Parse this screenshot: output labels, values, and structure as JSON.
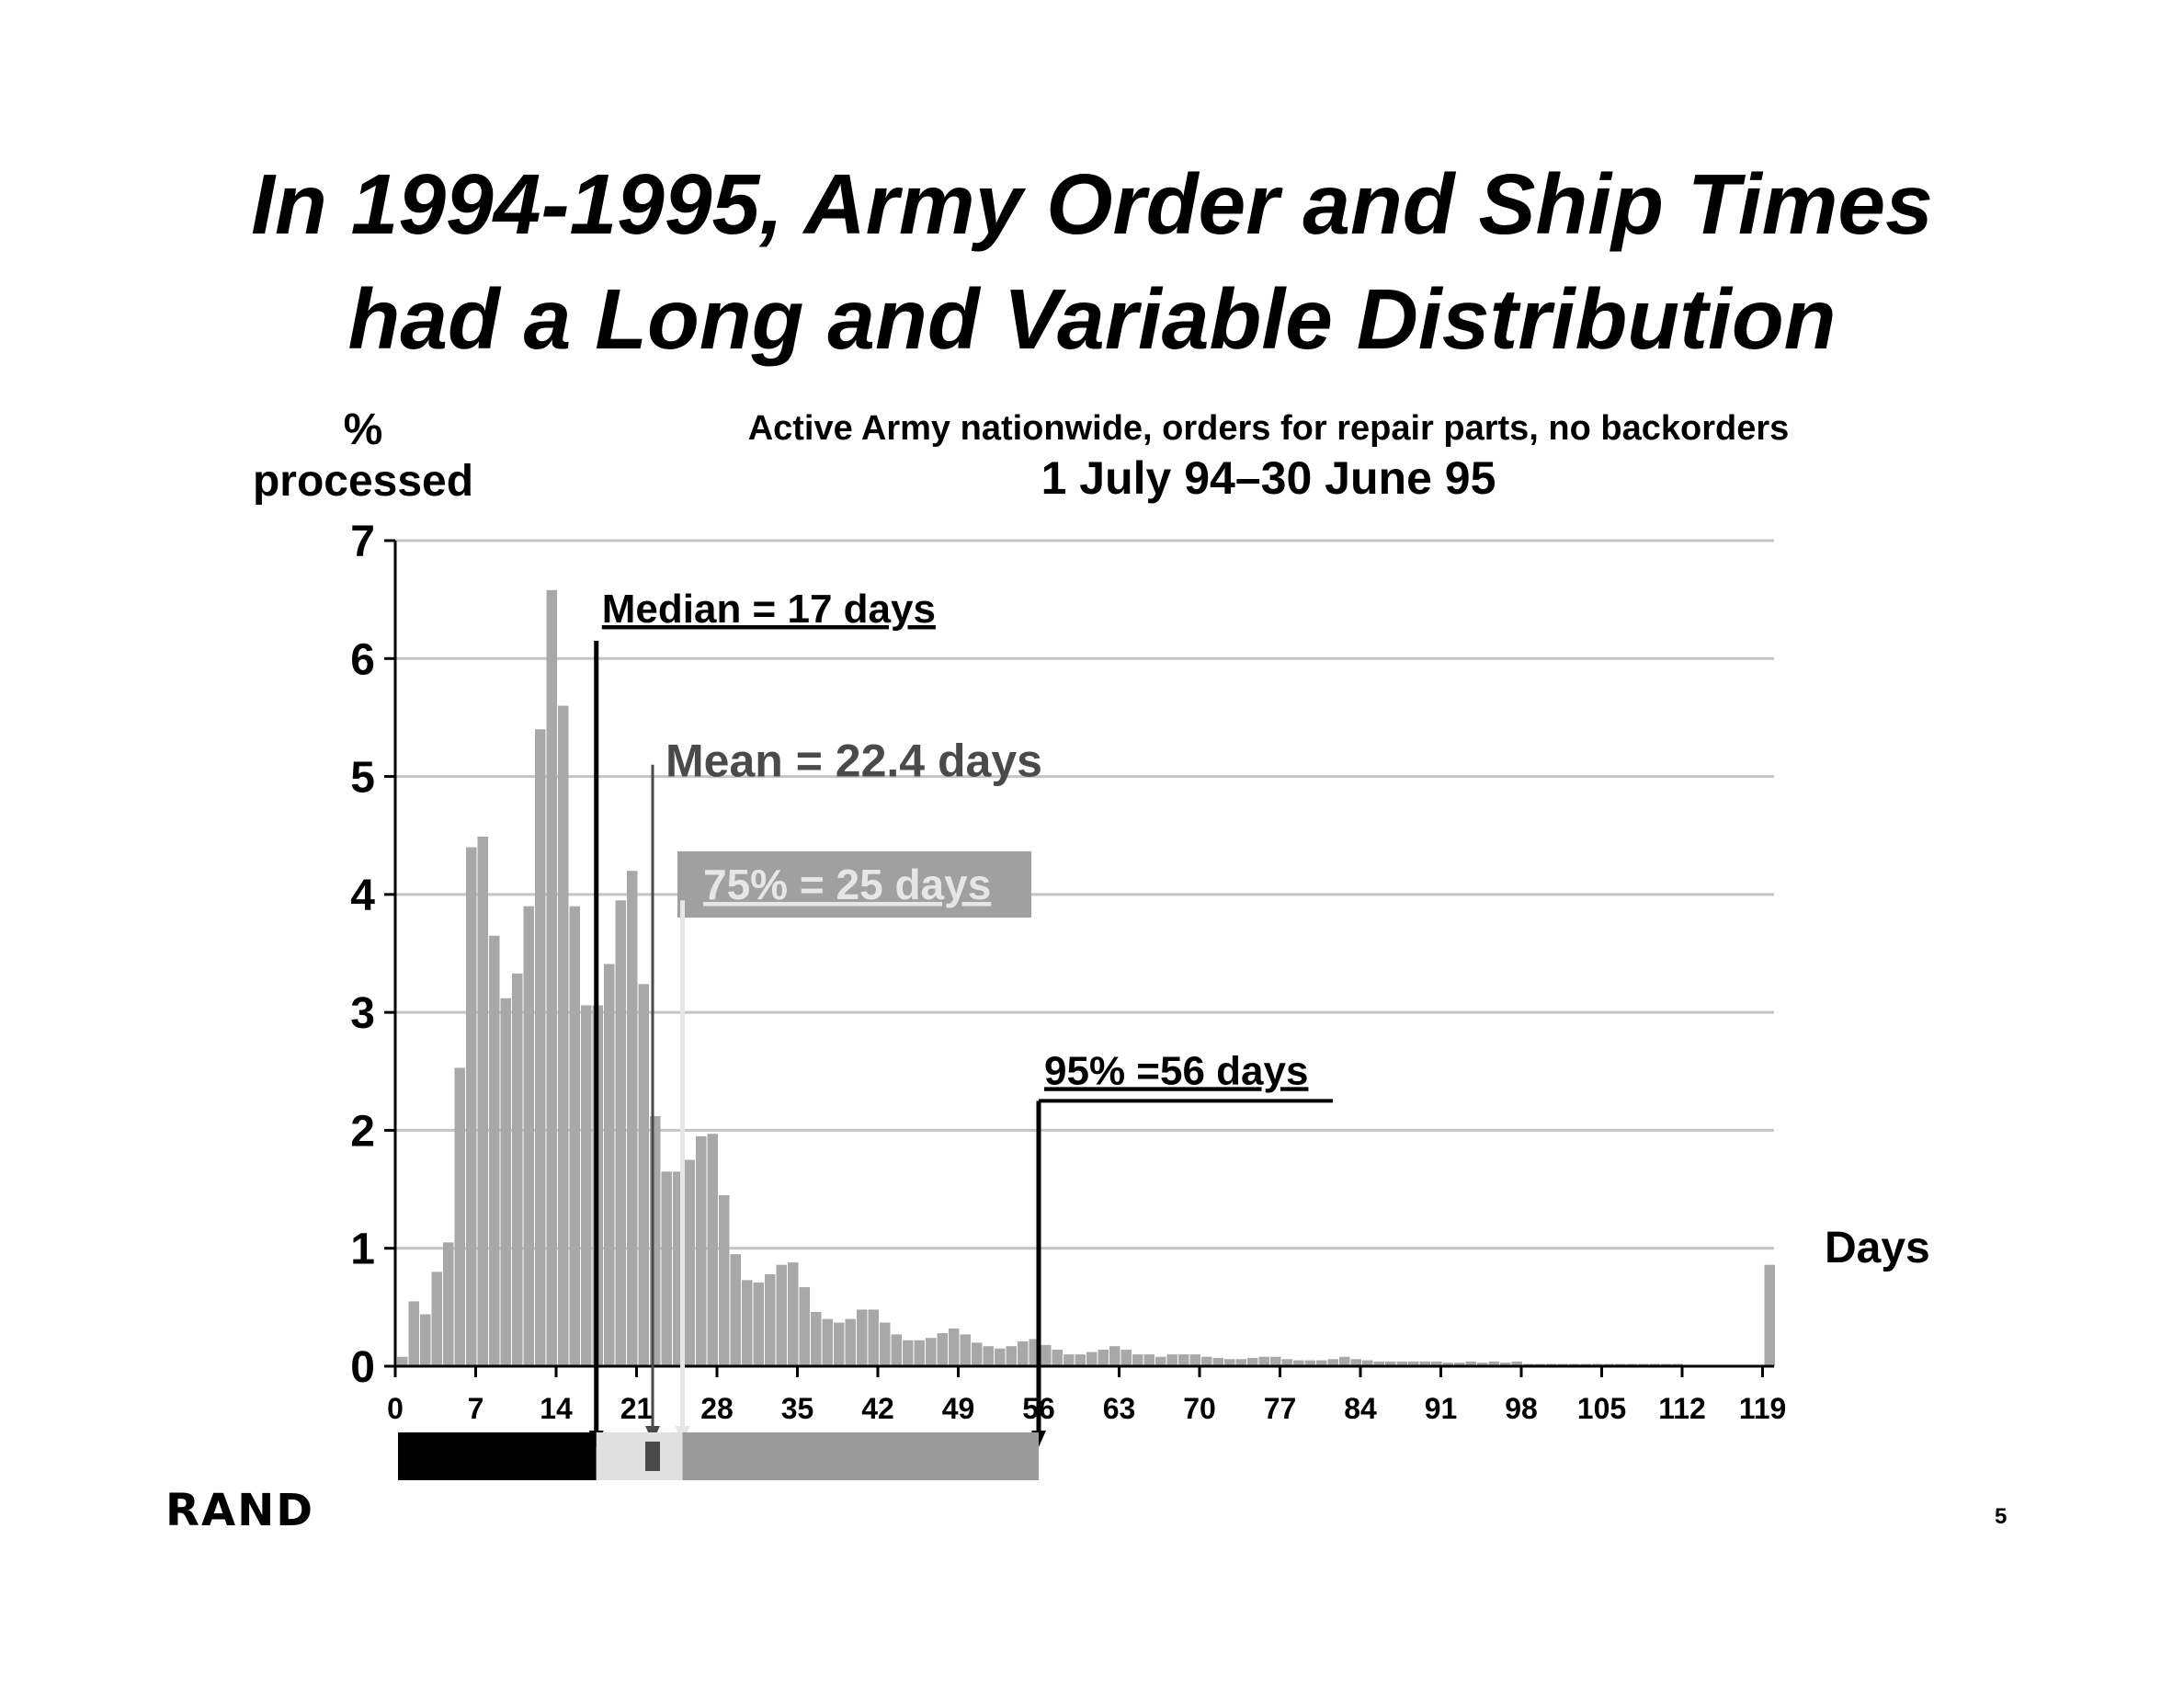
{
  "title": {
    "line1": "In 1994-1995, Army Order and Ship Times",
    "line2": "had a Long and Variable Distribution"
  },
  "footer": {
    "logo": "RAND",
    "page_number": "5"
  },
  "colors": {
    "bar": "#a8a8a8",
    "grid": "#c4c4c4",
    "median": "#000000",
    "mean": "#4a4a4a",
    "p75_box": "#a0a0a0",
    "p75_text": "#e6e6e6",
    "p95": "#000000",
    "strip_black": "#000000",
    "strip_light": "#e0e0e0",
    "strip_gray": "#9a9a9a"
  },
  "chart_data": {
    "type": "bar",
    "title": "Active Army nationwide, orders for repair parts, no backorders",
    "subtitle": "1 July 94–30 June 95",
    "ylabel_line1": "%",
    "ylabel_line2": "processed",
    "xlabel": "Days",
    "ylim": [
      0,
      7
    ],
    "yticks": [
      "0",
      "1",
      "2",
      "3",
      "4",
      "5",
      "6",
      "7"
    ],
    "xticks": [
      "0",
      "7",
      "14",
      "21",
      "28",
      "35",
      "42",
      "49",
      "56",
      "63",
      "70",
      "77",
      "84",
      "91",
      "98",
      "105",
      "112",
      "119"
    ],
    "grid": true,
    "x": [
      1,
      2,
      3,
      4,
      5,
      6,
      7,
      8,
      9,
      10,
      11,
      12,
      13,
      14,
      15,
      16,
      17,
      18,
      19,
      20,
      21,
      22,
      23,
      24,
      25,
      26,
      27,
      28,
      29,
      30,
      31,
      32,
      33,
      34,
      35,
      36,
      37,
      38,
      39,
      40,
      41,
      42,
      43,
      44,
      45,
      46,
      47,
      48,
      49,
      50,
      51,
      52,
      53,
      54,
      55,
      56,
      57,
      58,
      59,
      60,
      61,
      62,
      63,
      64,
      65,
      66,
      67,
      68,
      69,
      70,
      71,
      72,
      73,
      74,
      75,
      76,
      77,
      78,
      79,
      80,
      81,
      82,
      83,
      84,
      85,
      86,
      87,
      88,
      89,
      90,
      91,
      92,
      93,
      94,
      95,
      96,
      97,
      98,
      99,
      100,
      101,
      102,
      103,
      104,
      105,
      106,
      107,
      108,
      109,
      110,
      111,
      112,
      113,
      114,
      115,
      116,
      117,
      118,
      119,
      120
    ],
    "values": [
      0.08,
      0.55,
      0.44,
      0.8,
      1.05,
      2.53,
      4.4,
      4.49,
      3.65,
      3.12,
      3.33,
      3.9,
      5.4,
      6.58,
      5.6,
      3.9,
      3.06,
      3.06,
      3.41,
      3.95,
      4.2,
      3.24,
      2.12,
      1.65,
      1.65,
      1.75,
      1.95,
      1.97,
      1.45,
      0.95,
      0.73,
      0.71,
      0.78,
      0.86,
      0.88,
      0.67,
      0.46,
      0.4,
      0.37,
      0.4,
      0.48,
      0.48,
      0.37,
      0.27,
      0.22,
      0.22,
      0.24,
      0.28,
      0.32,
      0.27,
      0.2,
      0.17,
      0.15,
      0.17,
      0.21,
      0.23,
      0.18,
      0.14,
      0.1,
      0.1,
      0.12,
      0.14,
      0.17,
      0.14,
      0.1,
      0.1,
      0.08,
      0.1,
      0.1,
      0.1,
      0.08,
      0.07,
      0.06,
      0.06,
      0.07,
      0.08,
      0.08,
      0.06,
      0.05,
      0.05,
      0.05,
      0.06,
      0.08,
      0.06,
      0.05,
      0.04,
      0.04,
      0.04,
      0.04,
      0.04,
      0.04,
      0.03,
      0.03,
      0.04,
      0.03,
      0.04,
      0.03,
      0.04,
      0.02,
      0.02,
      0.02,
      0.02,
      0.02,
      0.02,
      0.02,
      0.02,
      0.02,
      0.02,
      0.02,
      0.02,
      0.02,
      0.02,
      0.01,
      0.01,
      0.01,
      0.01,
      0.01,
      0.01,
      0.01,
      0.86
    ],
    "annotations": {
      "median": {
        "label": "Median = 17 days",
        "day": 17.5,
        "line_top": 6.15
      },
      "mean": {
        "label": "Mean = 22.4 days",
        "day": 22.4,
        "line_top": 5.1
      },
      "p75": {
        "label": "75% = 25 days",
        "day": 25,
        "line_top": 3.95
      },
      "p95": {
        "label": "95% =56 days",
        "day": 56,
        "line_top": 2.25
      }
    }
  }
}
